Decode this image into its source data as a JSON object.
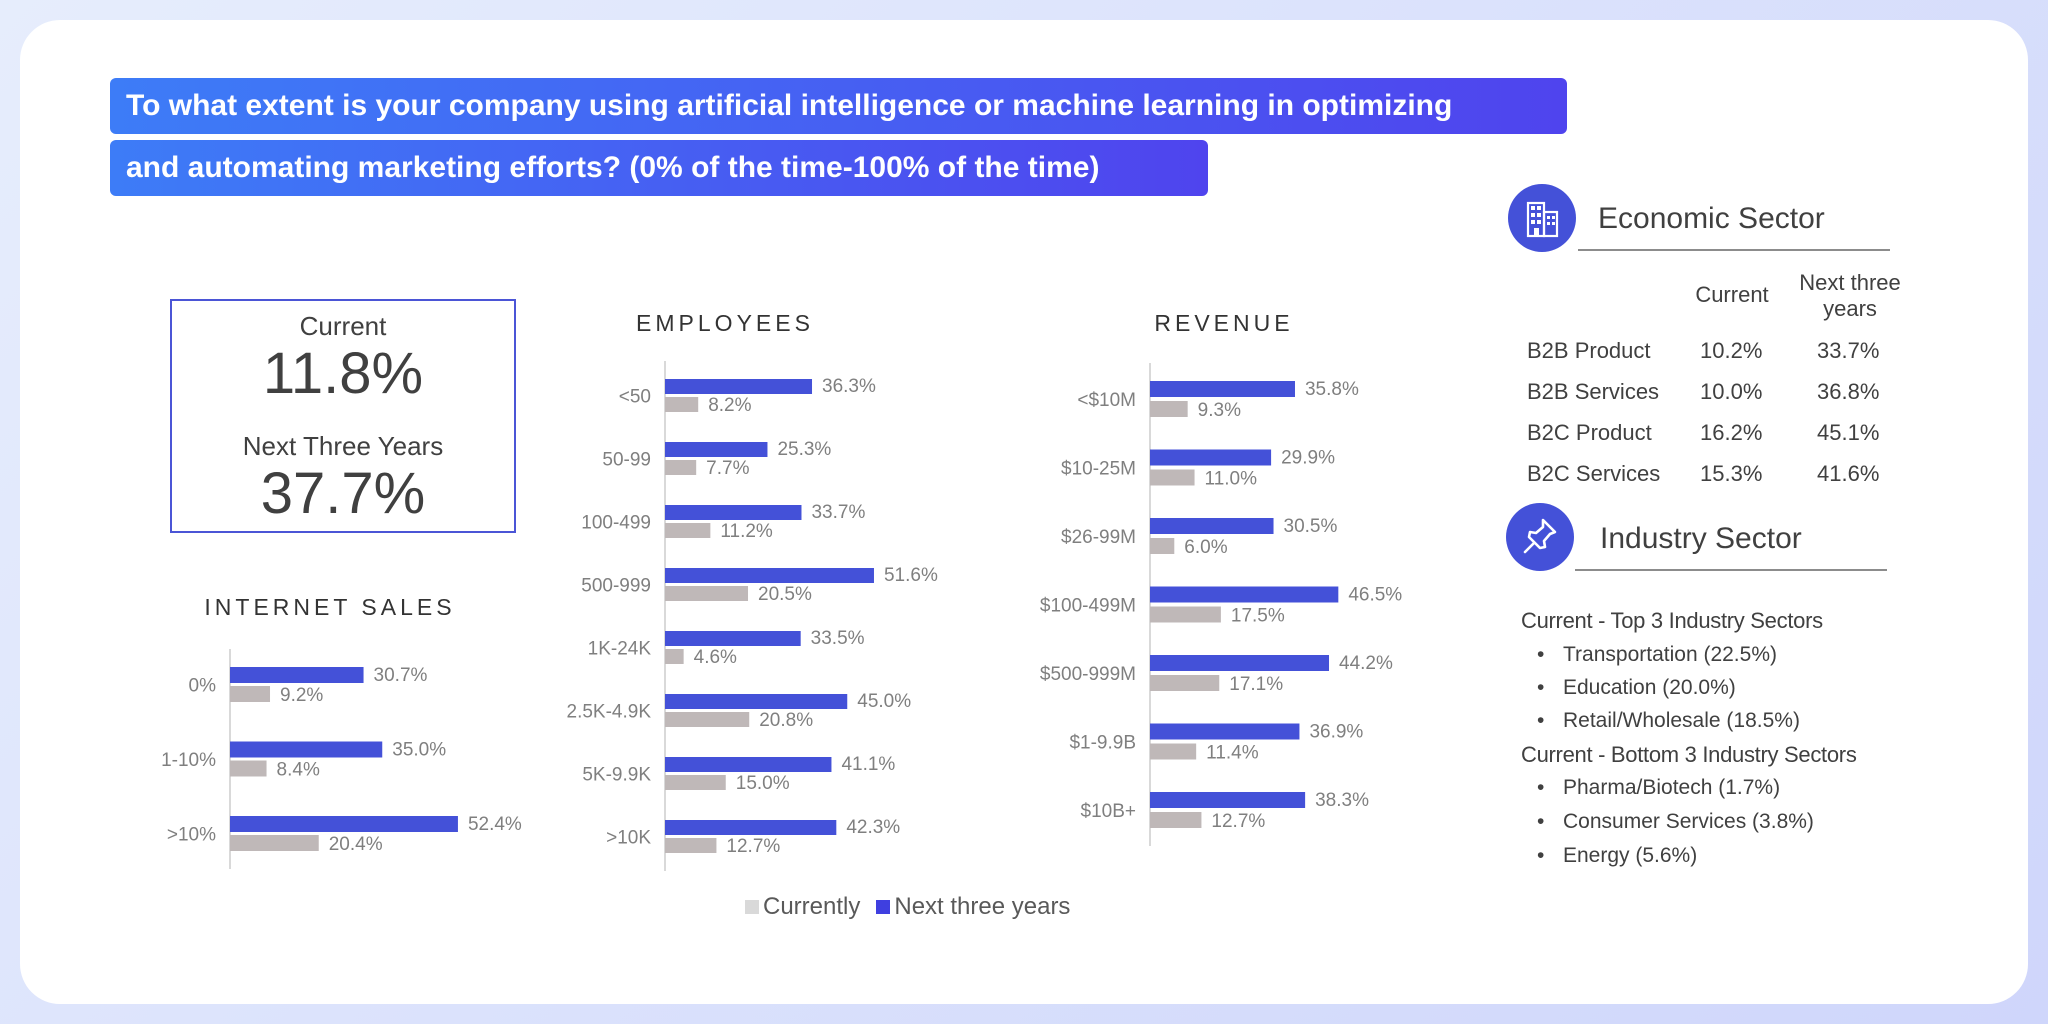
{
  "question": {
    "line1": "To what extent is your company using artificial intelligence or machine learning in optimizing",
    "line2": "and automating marketing efforts? (0% of the time-100% of the time)"
  },
  "summary": {
    "current_label": "Current",
    "current_value": "11.8%",
    "next_label": "Next Three Years",
    "next_value": "37.7%"
  },
  "colors": {
    "currently": "#bfb8b8",
    "next": "#4451d8",
    "accent": "#4f44ee"
  },
  "legend": {
    "currently": "Currently",
    "next": "Next three years"
  },
  "chart_data": [
    {
      "type": "bar",
      "orientation": "horizontal",
      "title": "INTERNET SALES",
      "categories": [
        "0%",
        "1-10%",
        ">10%"
      ],
      "series": [
        {
          "name": "Next three years",
          "values": [
            30.7,
            35.0,
            52.4
          ],
          "labels": [
            "30.7%",
            "35.0%",
            "52.4%"
          ]
        },
        {
          "name": "Currently",
          "values": [
            9.2,
            8.4,
            20.4
          ],
          "labels": [
            "9.2%",
            "8.4%",
            "20.4%"
          ]
        }
      ],
      "xlim": [
        0,
        60
      ]
    },
    {
      "type": "bar",
      "orientation": "horizontal",
      "title": "EMPLOYEES",
      "categories": [
        "<50",
        "50-99",
        "100-499",
        "500-999",
        "1K-24K",
        "2.5K-4.9K",
        "5K-9.9K",
        ">10K"
      ],
      "series": [
        {
          "name": "Next three years",
          "values": [
            36.3,
            25.3,
            33.7,
            51.6,
            33.5,
            45.0,
            41.1,
            42.3
          ],
          "labels": [
            "36.3%",
            "25.3%",
            "33.7%",
            "51.6%",
            "33.5%",
            "45.0%",
            "41.1%",
            "42.3%"
          ]
        },
        {
          "name": "Currently",
          "values": [
            8.2,
            7.7,
            11.2,
            20.5,
            4.6,
            20.8,
            15.0,
            12.7
          ],
          "labels": [
            "8.2%",
            "7.7%",
            "11.2%",
            "20.5%",
            "4.6%",
            "20.8%",
            "15.0%",
            "12.7%"
          ]
        }
      ],
      "xlim": [
        0,
        60
      ]
    },
    {
      "type": "bar",
      "orientation": "horizontal",
      "title": "REVENUE",
      "categories": [
        "<$10M",
        "$10-25M",
        "$26-99M",
        "$100-499M",
        "$500-999M",
        "$1-9.9B",
        "$10B+"
      ],
      "series": [
        {
          "name": "Next three years",
          "values": [
            35.8,
            29.9,
            30.5,
            46.5,
            44.2,
            36.9,
            38.3
          ],
          "labels": [
            "35.8%",
            "29.9%",
            "30.5%",
            "46.5%",
            "44.2%",
            "36.9%",
            "38.3%"
          ]
        },
        {
          "name": "Currently",
          "values": [
            9.3,
            11.0,
            6.0,
            17.5,
            17.1,
            11.4,
            12.7
          ],
          "labels": [
            "9.3%",
            "11.0%",
            "6.0%",
            "17.5%",
            "17.1%",
            "11.4%",
            "12.7%"
          ]
        }
      ],
      "xlim": [
        0,
        60
      ]
    },
    {
      "type": "table",
      "title": "Economic Sector",
      "columns": [
        "Current",
        "Next three years"
      ],
      "rows": [
        {
          "name": "B2B Product",
          "current": "10.2%",
          "next": "33.7%"
        },
        {
          "name": "B2B Services",
          "current": "10.0%",
          "next": "36.8%"
        },
        {
          "name": "B2C Product",
          "current": "16.2%",
          "next": "45.1%"
        },
        {
          "name": "B2C Services",
          "current": "15.3%",
          "next": "41.6%"
        }
      ]
    }
  ],
  "economic": {
    "title": "Economic Sector",
    "icon": "building-icon",
    "col_current": "Current",
    "col_next_1": "Next three",
    "col_next_2": "years",
    "rows": [
      {
        "name": "B2B Product",
        "current": "10.2%",
        "next": "33.7%"
      },
      {
        "name": "B2B Services",
        "current": "10.0%",
        "next": "36.8%"
      },
      {
        "name": "B2C Product",
        "current": "16.2%",
        "next": "45.1%"
      },
      {
        "name": "B2C Services",
        "current": "15.3%",
        "next": "41.6%"
      }
    ]
  },
  "industry": {
    "title": "Industry Sector",
    "icon": "pushpin-icon",
    "top_heading": "Current - Top 3 Industry Sectors",
    "top": [
      "Transportation (22.5%)",
      "Education (20.0%)",
      "Retail/Wholesale (18.5%)"
    ],
    "bottom_heading": "Current - Bottom 3 Industry Sectors",
    "bottom": [
      "Pharma/Biotech (1.7%)",
      "Consumer Services (3.8%)",
      "Energy (5.6%)"
    ]
  }
}
